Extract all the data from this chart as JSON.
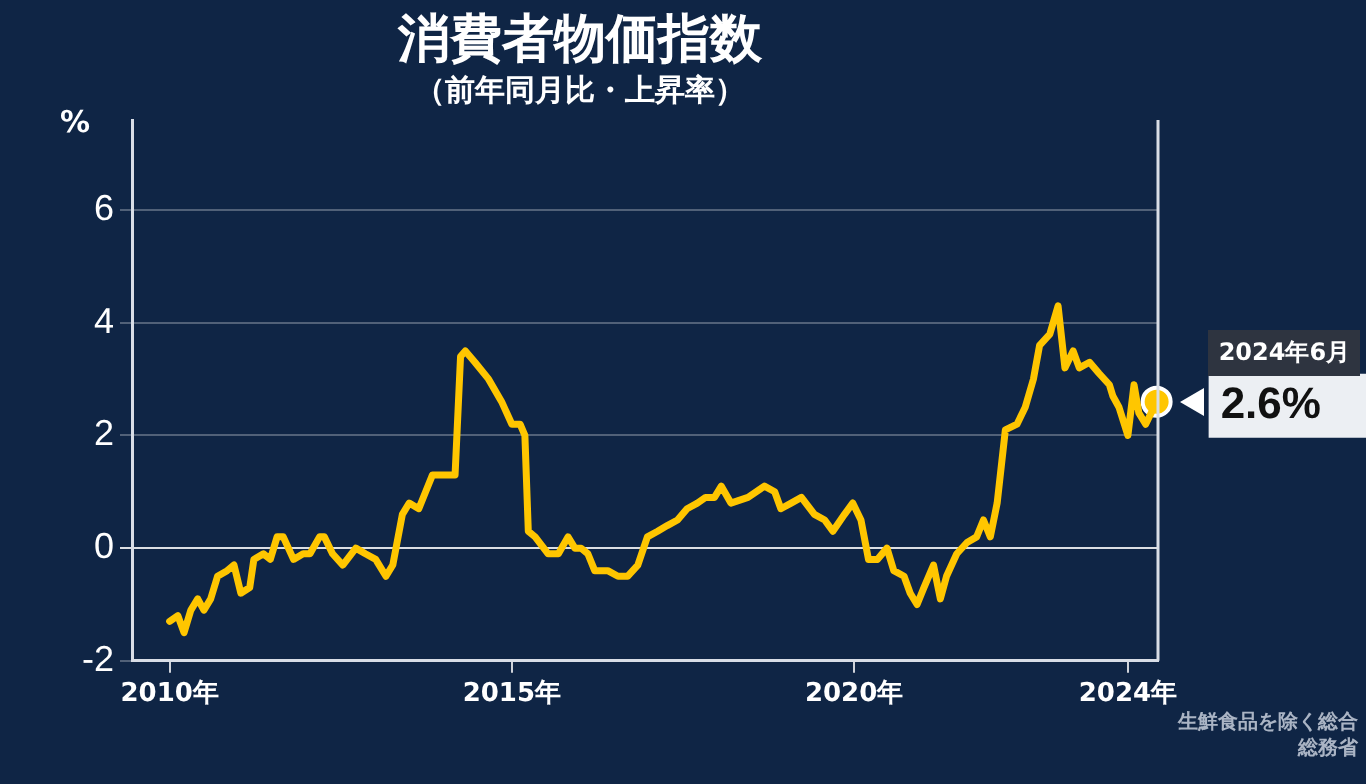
{
  "chart_data": {
    "type": "line",
    "title": "消費者物価指数",
    "subtitle": "（前年同月比・上昇率）",
    "ylabel": "%",
    "xlim": [
      2009.45,
      2024.44
    ],
    "ylim": [
      -2,
      7.6
    ],
    "xticks": [
      {
        "value": 2010,
        "label": "2010年"
      },
      {
        "value": 2015,
        "label": "2015年"
      },
      {
        "value": 2020,
        "label": "2020年"
      },
      {
        "value": 2024,
        "label": "2024年"
      }
    ],
    "yticks": [
      -2,
      0,
      2,
      4,
      6
    ],
    "grid": "y",
    "legend": false,
    "marker": "none",
    "series": [
      {
        "color": "#ffc600",
        "x": [
          2010.0,
          2010.12,
          2010.21,
          2010.31,
          2010.41,
          2010.5,
          2010.6,
          2010.7,
          2010.84,
          2010.94,
          2011.04,
          2011.17,
          2011.23,
          2011.37,
          2011.47,
          2011.57,
          2011.66,
          2011.81,
          2011.95,
          2012.05,
          2012.19,
          2012.26,
          2012.38,
          2012.53,
          2012.72,
          2012.86,
          2013.01,
          2013.16,
          2013.26,
          2013.4,
          2013.5,
          2013.64,
          2013.74,
          2013.84,
          2014.03,
          2014.17,
          2014.25,
          2014.32,
          2014.46,
          2014.66,
          2014.85,
          2015.0,
          2015.12,
          2015.19,
          2015.24,
          2015.34,
          2015.53,
          2015.68,
          2015.82,
          2015.92,
          2016.01,
          2016.11,
          2016.21,
          2016.4,
          2016.55,
          2016.69,
          2016.84,
          2016.98,
          2017.13,
          2017.27,
          2017.42,
          2017.56,
          2017.71,
          2017.83,
          2017.96,
          2018.06,
          2018.2,
          2018.45,
          2018.69,
          2018.84,
          2018.93,
          2019.08,
          2019.23,
          2019.42,
          2019.57,
          2019.69,
          2019.86,
          2019.98,
          2020.1,
          2020.21,
          2020.34,
          2020.48,
          2020.58,
          2020.73,
          2020.82,
          2020.92,
          2021.02,
          2021.16,
          2021.26,
          2021.35,
          2021.5,
          2021.65,
          2021.79,
          2021.89,
          2021.99,
          2022.09,
          2022.21,
          2022.38,
          2022.5,
          2022.62,
          2022.71,
          2022.86,
          2022.98,
          2023.08,
          2023.2,
          2023.29,
          2023.44,
          2023.58,
          2023.73,
          2023.78,
          2023.87,
          2024.0,
          2024.09,
          2024.16,
          2024.26,
          2024.42
        ],
        "values": [
          -1.3,
          -1.2,
          -1.5,
          -1.1,
          -0.9,
          -1.1,
          -0.9,
          -0.5,
          -0.4,
          -0.3,
          -0.8,
          -0.7,
          -0.2,
          -0.1,
          -0.2,
          0.2,
          0.2,
          -0.2,
          -0.1,
          -0.1,
          0.2,
          0.2,
          -0.1,
          -0.3,
          0.0,
          -0.1,
          -0.2,
          -0.5,
          -0.3,
          0.6,
          0.8,
          0.7,
          1.0,
          1.3,
          1.3,
          1.3,
          3.4,
          3.5,
          3.3,
          3.0,
          2.6,
          2.2,
          2.2,
          2.0,
          0.3,
          0.2,
          -0.1,
          -0.1,
          0.2,
          0.0,
          0.0,
          -0.1,
          -0.4,
          -0.4,
          -0.5,
          -0.5,
          -0.3,
          0.2,
          0.3,
          0.4,
          0.5,
          0.7,
          0.8,
          0.9,
          0.9,
          1.1,
          0.8,
          0.9,
          1.1,
          1.0,
          0.7,
          0.8,
          0.9,
          0.6,
          0.5,
          0.3,
          0.6,
          0.8,
          0.5,
          -0.2,
          -0.2,
          0.0,
          -0.4,
          -0.5,
          -0.8,
          -1.0,
          -0.7,
          -0.3,
          -0.9,
          -0.5,
          -0.1,
          0.1,
          0.2,
          0.5,
          0.2,
          0.8,
          2.1,
          2.2,
          2.5,
          3.0,
          3.6,
          3.8,
          4.3,
          3.2,
          3.5,
          3.2,
          3.3,
          3.1,
          2.9,
          2.7,
          2.5,
          2.0,
          2.9,
          2.4,
          2.2,
          2.6
        ]
      },
      {
        "type": "scatter",
        "color": "#ffc600",
        "marker": "circle",
        "x": [
          2024.42
        ],
        "values": [
          2.6
        ],
        "value_labels": [
          "2.6%"
        ]
      }
    ],
    "annotations": [
      "2024年6月",
      "生鮮食品を除く総合",
      "総務省"
    ]
  }
}
